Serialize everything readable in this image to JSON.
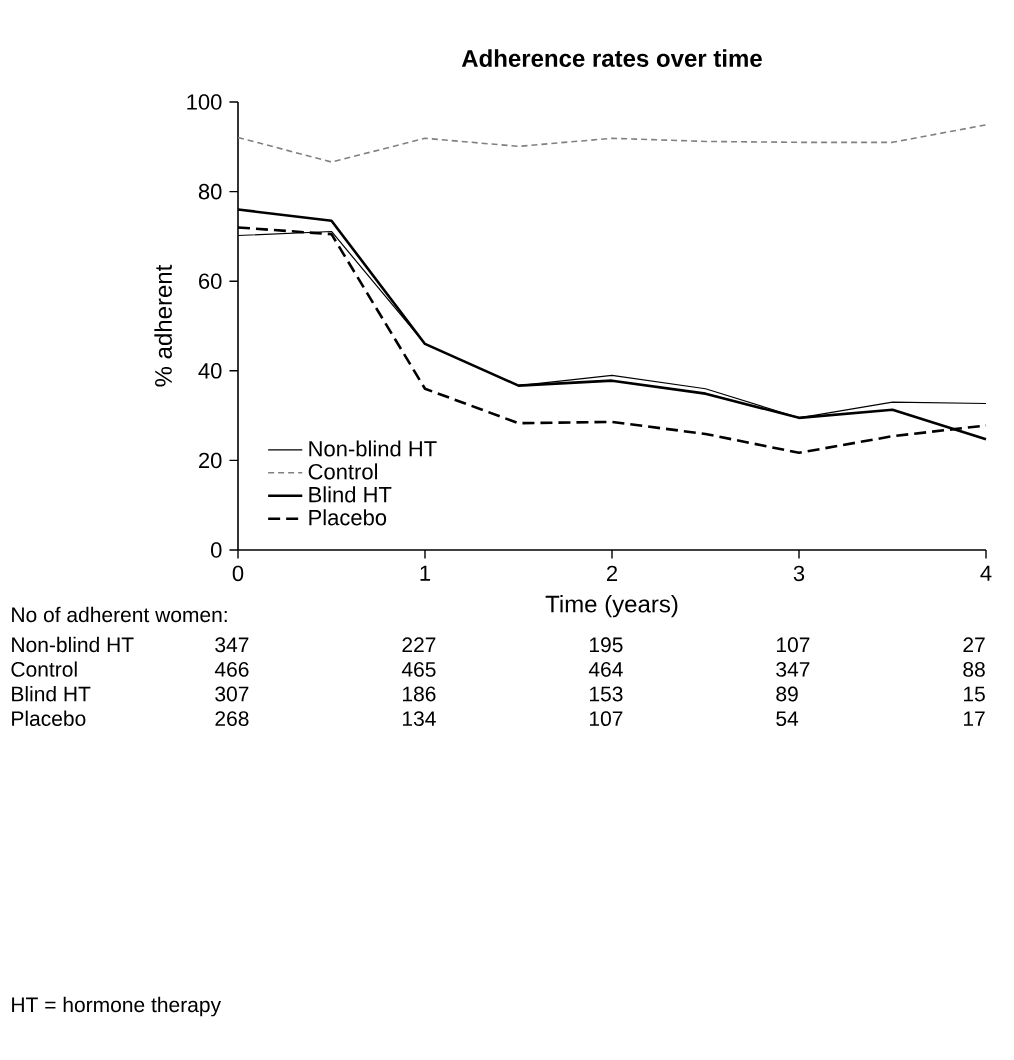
{
  "chart_data": {
    "type": "line",
    "title": "Adherence rates over time",
    "xlabel": "Time (years)",
    "ylabel": "% adherent",
    "x": [
      0,
      0.5,
      1,
      1.5,
      2,
      2.5,
      3,
      3.5,
      4
    ],
    "series": [
      {
        "name": "Non-blind HT",
        "color": "#000000",
        "line_style": "solid",
        "values": [
          70.2,
          71.1,
          46,
          36.7,
          39,
          36,
          29.5,
          33,
          32.7
        ]
      },
      {
        "name": "Control",
        "color": "#808080",
        "line_style": "dotted",
        "values": [
          92.1,
          86.6,
          91.9,
          90.1,
          91.9,
          91.2,
          91,
          91,
          94.9
        ]
      },
      {
        "name": "Blind HT",
        "color": "#000000",
        "line_style": "solid",
        "values": [
          76,
          73.5,
          46,
          36.7,
          37.8,
          34.9,
          29.5,
          31.3,
          24.7
        ]
      },
      {
        "name": "Placebo",
        "color": "#000000",
        "line_style": "dashed",
        "values": [
          72,
          70.5,
          36,
          28.3,
          28.6,
          25.9,
          21.7,
          25.4,
          27.8
        ]
      }
    ],
    "xlim": [
      0,
      4
    ],
    "xticks": [
      0,
      1,
      2,
      3,
      4
    ],
    "ylim": [
      0,
      100
    ],
    "yticks": [
      0,
      20,
      40,
      60,
      80,
      100
    ],
    "legend": "bottom left",
    "grid": false,
    "marker": "none",
    "annotations": [
      "No of adherent women:",
      "Non-blind HT",
      "347",
      "227",
      "195",
      "107",
      "27",
      "Control",
      "466",
      "465",
      "464",
      "347",
      "88",
      "Blind HT",
      "307",
      "186",
      "153",
      "89",
      "15",
      "Placebo",
      "268",
      "134",
      "107",
      "54",
      "17",
      "HT = hormone therapy"
    ]
  }
}
